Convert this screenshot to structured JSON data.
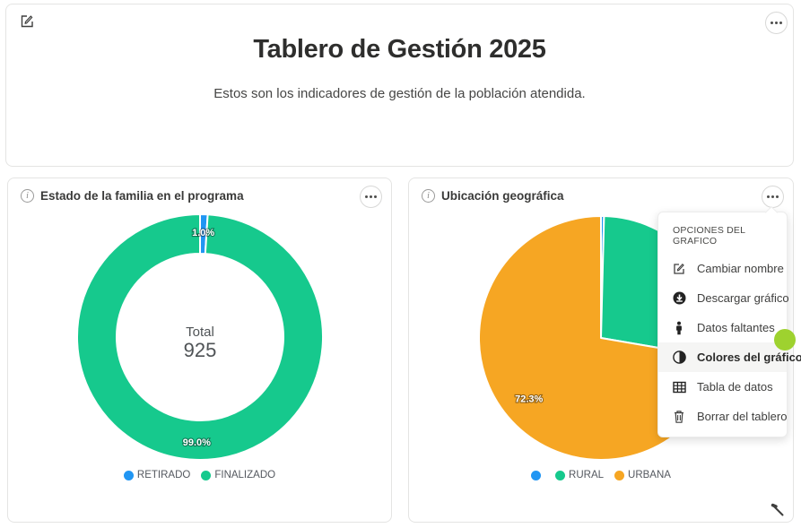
{
  "header": {
    "title": "Tablero de Gestión 2025",
    "subtitle": "Estos son los indicadores de gestión de la población atendida."
  },
  "colors": {
    "blue": "#2196f3",
    "green": "#16c98d",
    "orange": "#f6a623",
    "cursor_dot": "#9ed22f"
  },
  "chart_data": [
    {
      "type": "pie",
      "variant": "donut",
      "title": "Estado de la familia en el programa",
      "center_label": "Total",
      "center_value": "925",
      "categories": [
        "RETIRADO",
        "FINALIZADO"
      ],
      "values": [
        1.0,
        99.0
      ],
      "unit": "percent",
      "colors": [
        "#2196f3",
        "#16c98d"
      ],
      "slice_labels": [
        "1.0%",
        "99.0%"
      ],
      "legend": [
        {
          "label": "RETIRADO",
          "color": "#2196f3"
        },
        {
          "label": "FINALIZADO",
          "color": "#16c98d"
        }
      ],
      "legend_position": "bottom"
    },
    {
      "type": "pie",
      "title": "Ubicación geográfica",
      "categories": [
        "",
        "RURAL",
        "URBANA"
      ],
      "values": [
        0.4,
        27.3,
        72.3
      ],
      "unit": "percent",
      "colors": [
        "#2196f3",
        "#16c98d",
        "#f6a623"
      ],
      "slice_labels": [
        "",
        "",
        "72.3%"
      ],
      "legend": [
        {
          "label": "",
          "color": "#2196f3"
        },
        {
          "label": "RURAL",
          "color": "#16c98d"
        },
        {
          "label": "URBANA",
          "color": "#f6a623"
        }
      ],
      "legend_position": "bottom"
    }
  ],
  "menu": {
    "title": "OPCIONES DEL GRAFICO",
    "items": [
      {
        "label": "Cambiar nombre"
      },
      {
        "label": "Descargar gráfico"
      },
      {
        "label": "Datos faltantes"
      },
      {
        "label": "Colores del gráfico",
        "active": true
      },
      {
        "label": "Tabla de datos"
      },
      {
        "label": "Borrar del tablero"
      }
    ]
  }
}
